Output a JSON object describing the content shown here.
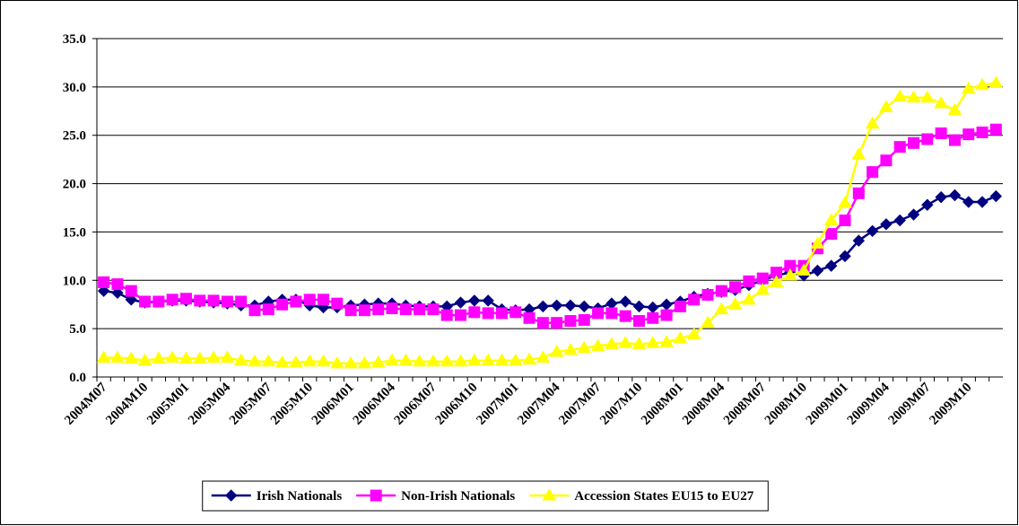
{
  "chart_data": {
    "type": "line",
    "categories": [
      "2004M07",
      null,
      null,
      "2004M10",
      null,
      null,
      "2005M01",
      null,
      null,
      "2005M04",
      null,
      null,
      "2005M07",
      null,
      null,
      "2005M10",
      null,
      null,
      "2006M01",
      null,
      null,
      "2006M04",
      null,
      null,
      "2006M07",
      null,
      null,
      "2006M10",
      null,
      null,
      "2007M01",
      null,
      null,
      "2007M04",
      null,
      null,
      "2007M07",
      null,
      null,
      "2007M10",
      null,
      null,
      "2008M01",
      null,
      null,
      "2008M04",
      null,
      null,
      "2008M07",
      null,
      null,
      "2008M10",
      null,
      null,
      "2009M01",
      null,
      null,
      "2009M04",
      null,
      null,
      "2009M07",
      null,
      null,
      "2009M10",
      null,
      null
    ],
    "series": [
      {
        "name": "Irish Nationals",
        "color": "#000080",
        "marker": "diamond",
        "values": [
          8.9,
          8.7,
          8.0,
          7.7,
          7.8,
          7.9,
          7.9,
          7.8,
          7.7,
          7.6,
          7.4,
          7.4,
          7.8,
          8.0,
          8.0,
          7.4,
          7.2,
          7.2,
          7.4,
          7.5,
          7.6,
          7.6,
          7.4,
          7.3,
          7.3,
          7.3,
          7.7,
          7.9,
          7.9,
          7.0,
          6.9,
          7.0,
          7.3,
          7.4,
          7.4,
          7.3,
          7.1,
          7.6,
          7.8,
          7.3,
          7.2,
          7.5,
          7.8,
          8.3,
          8.6,
          8.8,
          9.0,
          9.5,
          10.0,
          10.5,
          10.8,
          10.5,
          11.0,
          11.5,
          12.5,
          14.1,
          15.1,
          15.8,
          16.2,
          16.8,
          17.8,
          18.6,
          18.8,
          18.1,
          18.1,
          18.7
        ]
      },
      {
        "name": "Non-Irish Nationals",
        "color": "#ff00ff",
        "marker": "square",
        "values": [
          9.8,
          9.6,
          8.9,
          7.8,
          7.8,
          8.0,
          8.1,
          7.9,
          7.9,
          7.8,
          7.8,
          6.9,
          7.0,
          7.5,
          7.8,
          8.0,
          8.0,
          7.6,
          6.9,
          6.9,
          7.0,
          7.1,
          7.0,
          7.0,
          7.0,
          6.4,
          6.4,
          6.7,
          6.6,
          6.6,
          6.7,
          6.1,
          5.6,
          5.6,
          5.8,
          5.9,
          6.6,
          6.6,
          6.3,
          5.8,
          6.1,
          6.4,
          7.3,
          8.0,
          8.5,
          8.9,
          9.3,
          9.9,
          10.2,
          10.8,
          11.5,
          11.5,
          13.3,
          14.8,
          16.2,
          19.0,
          21.2,
          22.4,
          23.8,
          24.2,
          24.6,
          25.2,
          24.5,
          25.1,
          25.3,
          25.6
        ]
      },
      {
        "name": "Accession States EU15 to EU27",
        "color": "#ffff00",
        "marker": "triangle",
        "values": [
          2.0,
          2.0,
          1.9,
          1.7,
          1.9,
          2.0,
          1.9,
          1.9,
          2.0,
          2.0,
          1.7,
          1.6,
          1.6,
          1.5,
          1.5,
          1.6,
          1.6,
          1.4,
          1.4,
          1.4,
          1.5,
          1.7,
          1.7,
          1.6,
          1.6,
          1.6,
          1.6,
          1.7,
          1.7,
          1.7,
          1.7,
          1.8,
          2.0,
          2.6,
          2.8,
          3.0,
          3.2,
          3.4,
          3.5,
          3.4,
          3.5,
          3.6,
          4.0,
          4.4,
          5.6,
          7.0,
          7.5,
          8.0,
          9.0,
          9.8,
          10.5,
          11.0,
          13.8,
          16.2,
          18.0,
          23.0,
          26.2,
          27.9,
          29.0,
          28.9,
          28.9,
          28.3,
          27.6,
          29.8,
          30.2,
          30.4
        ]
      }
    ],
    "ylim": [
      0,
      35
    ],
    "yticks": [
      {
        "value": 0,
        "label": "0.0"
      },
      {
        "value": 5,
        "label": "5.0"
      },
      {
        "value": 10,
        "label": "10.0"
      },
      {
        "value": 15,
        "label": "15.0"
      },
      {
        "value": 20,
        "label": "20.0"
      },
      {
        "value": 25,
        "label": "25.0"
      },
      {
        "value": 30,
        "label": "30.0"
      },
      {
        "value": 35,
        "label": "35.0"
      }
    ],
    "grid": true,
    "legend": "bottom"
  }
}
